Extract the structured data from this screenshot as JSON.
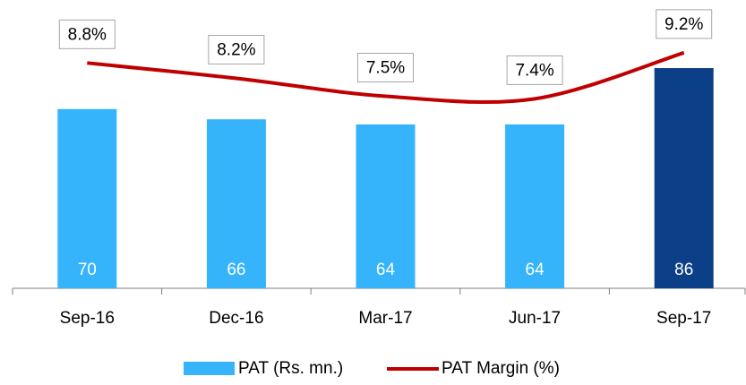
{
  "chart_data": {
    "type": "bar",
    "categories": [
      "Sep-16",
      "Dec-16",
      "Mar-17",
      "Jun-17",
      "Sep-17"
    ],
    "series": [
      {
        "name": "PAT (Rs. mn.)",
        "type": "bar",
        "color": "#35b4fc",
        "colors": [
          "#35b4fc",
          "#35b4fc",
          "#35b4fc",
          "#35b4fc",
          "#0b3f88"
        ],
        "values": [
          70,
          66,
          64,
          64,
          86
        ]
      },
      {
        "name": "PAT Margin (%)",
        "type": "line",
        "axis": "y2",
        "color": "#c00000",
        "values": [
          8.8,
          8.2,
          7.5,
          7.4,
          9.2
        ],
        "value_labels": [
          "8.8%",
          "8.2%",
          "7.5%",
          "7.4%",
          "9.2%"
        ]
      }
    ],
    "ylim": [
      0,
      100
    ],
    "y2lim": [
      0,
      10
    ],
    "legend": "bottom"
  }
}
